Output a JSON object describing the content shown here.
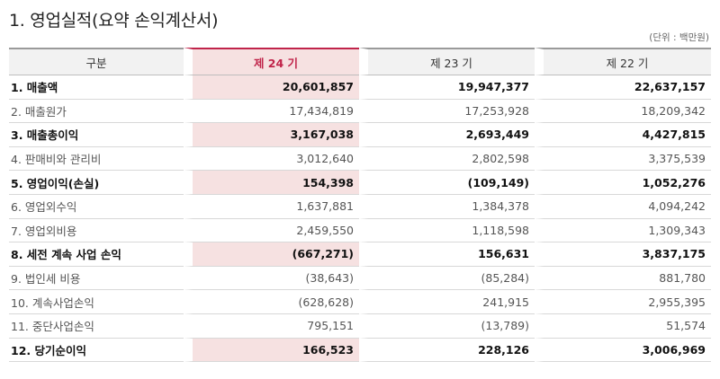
{
  "title": "1. 영업실적(요약 손익계산서)",
  "unit": "(단위 : 백만원)",
  "columns": [
    "구분",
    "제 24 기",
    "제 23 기",
    "제 22 기"
  ],
  "rows": [
    {
      "label": "1. 매출액",
      "bold": true,
      "values": [
        "20,601,857",
        "19,947,377",
        "22,637,157"
      ]
    },
    {
      "label": "2. 매출원가",
      "bold": false,
      "values": [
        "17,434,819",
        "17,253,928",
        "18,209,342"
      ]
    },
    {
      "label": "3. 매출총이익",
      "bold": true,
      "values": [
        "3,167,038",
        "2,693,449",
        "4,427,815"
      ]
    },
    {
      "label": "4. 판매비와 관리비",
      "bold": false,
      "values": [
        "3,012,640",
        "2,802,598",
        "3,375,539"
      ]
    },
    {
      "label": "5. 영업이익(손실)",
      "bold": true,
      "values": [
        "154,398",
        "(109,149)",
        "1,052,276"
      ]
    },
    {
      "label": "6. 영업외수익",
      "bold": false,
      "values": [
        "1,637,881",
        "1,384,378",
        "4,094,242"
      ]
    },
    {
      "label": "7. 영업외비용",
      "bold": false,
      "values": [
        "2,459,550",
        "1,118,598",
        "1,309,343"
      ]
    },
    {
      "label": "8. 세전 계속 사업 손익",
      "bold": true,
      "values": [
        "(667,271)",
        "156,631",
        "3,837,175"
      ]
    },
    {
      "label": "9. 법인세 비용",
      "bold": false,
      "values": [
        "(38,643)",
        "(85,284)",
        "881,780"
      ]
    },
    {
      "label": "10. 계속사업손익",
      "bold": false,
      "values": [
        "(628,628)",
        "241,915",
        "2,955,395"
      ]
    },
    {
      "label": "11. 중단사업손익",
      "bold": false,
      "values": [
        "795,151",
        "(13,789)",
        "51,574"
      ]
    },
    {
      "label": "12. 당기순이익",
      "bold": true,
      "values": [
        "166,523",
        "228,126",
        "3,006,969"
      ]
    }
  ]
}
